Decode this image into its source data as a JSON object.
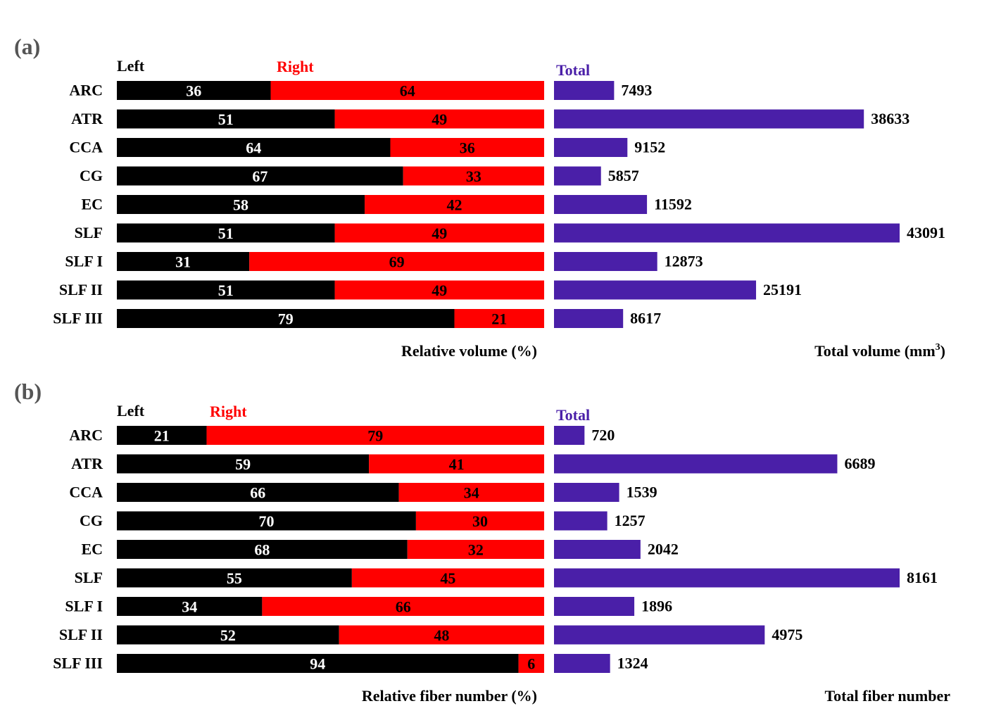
{
  "colors": {
    "left": "#000000",
    "right": "#ff0000",
    "total": "#4a1fa8",
    "panel_label": "#555555"
  },
  "chart_data": [
    {
      "type": "bar",
      "panel_label": "(a)",
      "categories": [
        "ARC",
        "ATR",
        "CCA",
        "CG",
        "EC",
        "SLF",
        "SLF I",
        "SLF II",
        "SLF III"
      ],
      "relative": {
        "left_label": "Left",
        "right_label": "Right",
        "left": [
          36,
          51,
          64,
          67,
          58,
          51,
          31,
          51,
          79
        ],
        "right": [
          64,
          49,
          36,
          33,
          42,
          49,
          69,
          49,
          21
        ],
        "xlabel": "Relative volume (%)",
        "xlim": [
          0,
          100
        ]
      },
      "total": {
        "label": "Total",
        "values": [
          7493,
          38633,
          9152,
          5857,
          11592,
          43091,
          12873,
          25191,
          8617
        ],
        "xlabel": "Total volume (mm",
        "xlabel_sup": "3",
        "xlabel_tail": ")",
        "xlim": [
          0,
          43091
        ]
      }
    },
    {
      "type": "bar",
      "panel_label": "(b)",
      "categories": [
        "ARC",
        "ATR",
        "CCA",
        "CG",
        "EC",
        "SLF",
        "SLF I",
        "SLF II",
        "SLF III"
      ],
      "relative": {
        "left_label": "Left",
        "right_label": "Right",
        "left": [
          21,
          59,
          66,
          70,
          68,
          55,
          34,
          52,
          94
        ],
        "right": [
          79,
          41,
          34,
          30,
          32,
          45,
          66,
          48,
          6
        ],
        "xlabel": "Relative fiber number (%)",
        "xlim": [
          0,
          100
        ]
      },
      "total": {
        "label": "Total",
        "values": [
          720,
          6689,
          1539,
          1257,
          2042,
          8161,
          1896,
          4975,
          1324
        ],
        "xlabel": "Total fiber number",
        "xlabel_sup": "",
        "xlabel_tail": "",
        "xlim": [
          0,
          8161
        ]
      }
    }
  ]
}
